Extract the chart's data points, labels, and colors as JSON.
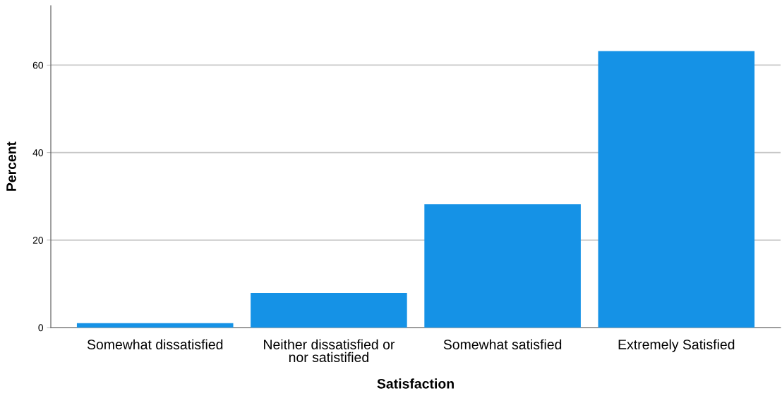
{
  "chart_data": {
    "type": "bar",
    "xlabel": "Satisfaction",
    "ylabel": "Percent",
    "categories": [
      "Somewhat dissatisfied",
      "Neither dissatisfied or\nnor satistified",
      "Somewhat satisfied",
      "Extremely Satisfied"
    ],
    "values": [
      1.0,
      7.9,
      28.2,
      63.2
    ],
    "color": "#1592e6",
    "ylim": [
      0,
      73.6
    ],
    "yticks": [
      0,
      20,
      40,
      60
    ],
    "grid": "y",
    "legend": false
  }
}
